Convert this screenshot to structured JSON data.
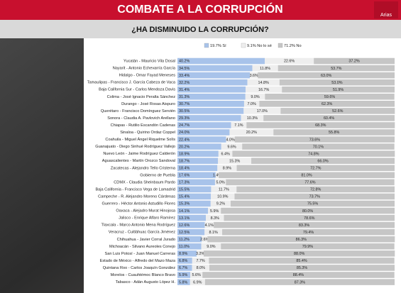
{
  "chart_data": {
    "type": "stacked-bar",
    "orientation": "horizontal",
    "title": "COMBATE A LA CORRUPCIÓN",
    "subtitle": "¿HA DISMINUIDO LA CORRUPCIÓN?",
    "brand": "Arias",
    "xlim": [
      0,
      100
    ],
    "categories": [
      "Yucatán - Mauricio Vila Dosal",
      "Nayarit - Antonio Echevarría García",
      "Hidalgo - Omar Fayad Meneses",
      "Tamaulipas - Francisco J. García Cabeza de Vaca",
      "Baja California Sur - Carlos Mendoza Davis",
      "Colima - José Ignacio Peralta Sánchez",
      "Durango - José Rosas Aispuro",
      "Querétaro - Francisco Domínguez Servién",
      "Sonora - Claudia A. Pavlovich Arellano",
      "Chiapas - Rutilio Escandón Cadenas",
      "Sinaloa - Quirino Ordaz Coppel",
      "Coahuila - Miguel Ángel Riquelme Solís",
      "Guanajuato - Diego Sinhué Rodríguez Vallejo",
      "Nuevo León - Jaime Rodríguez Calderón",
      "Aguascalientes - Martín Orozco Sandoval",
      "Zacatecas - Alejandro Tello Cristerna",
      "Gobierno de Puebla",
      "CDMX - Claudia Sheinbaum Pardo",
      "Baja California - Francisco Vega de Lamadrid",
      "Campeche - R. Alejandro Moreno Cárdenas",
      "Guerrero - Héctor Antonio Astudillo Flores",
      "Oaxaca - Alejadro Murat Hinojosa",
      "Jalisco - Enrique Alfaro Ramírez",
      "Tlaxcala - Marco Antonio Mena Rodríguez",
      "Veracruz - Cuitláhuac García Jiménez",
      "Chihuahua - Javier Corral Jurado",
      "Michoacán - Silvano Aureoles Conejo",
      "San Luis Potosí - Juan Manuel Carreras",
      "Estado de México - Alfredo del Mazo Maza",
      "Quintana Roo - Carlos Joaquín González",
      "Morelos - Cuauhtémoc Blanco Bravo",
      "Tabasco - Adán Augusto López H."
    ],
    "series": [
      {
        "name": "19.7% Sí",
        "color": "#a8c3ea",
        "values": [
          40.2,
          34.5,
          33.4,
          32.2,
          31.4,
          31.3,
          30.7,
          30.5,
          29.3,
          24.7,
          24.0,
          22.4,
          20.2,
          18.9,
          18.7,
          18.4,
          17.6,
          17.3,
          15.5,
          15.4,
          15.3,
          14.1,
          13.1,
          12.6,
          12.5,
          11.2,
          11.0,
          8.9,
          6.8,
          6.7,
          5.9,
          5.8
        ],
        "value_labels": [
          "40.2%",
          "34.5%",
          "33.4%",
          "32.2%",
          "31.4%",
          "31.3%",
          "30.7%",
          "30.5%",
          "29.3%",
          "24.7%",
          "24.0%",
          "22.4%",
          "20.2%",
          "18.9%",
          "18.7%",
          "18.4%",
          "17.6%",
          "17.3%",
          "15.5%",
          "15.4%",
          "15.3%",
          "14.1%",
          "13.1%",
          "12.6%",
          "12.5%",
          "11.2%",
          "11.0%",
          "8.9%",
          "6.8%",
          "6.7%",
          "5.9%",
          "5.8%"
        ]
      },
      {
        "name": "9.1% No lo sé",
        "color": "#eeeeee",
        "values": [
          22.6,
          11.8,
          3.6,
          14.8,
          16.7,
          9.0,
          7.0,
          17.0,
          10.3,
          7.1,
          20.2,
          4.0,
          9.6,
          6.4,
          15.3,
          8.9,
          1.4,
          5.0,
          11.7,
          10.9,
          9.2,
          5.9,
          8.3,
          4.1,
          8.1,
          2.6,
          9.0,
          3.2,
          7.7,
          8.0,
          5.6,
          6.9
        ],
        "value_labels": [
          "22.6%",
          "11.8%",
          "3.6%",
          "14.8%",
          "16.7%",
          "9.0%",
          "7.0%",
          "17.0%",
          "10.3%",
          "7.1%",
          "20.2%",
          "4.0%",
          "9.6%",
          "6.4%",
          "15.3%",
          "8.9%",
          "1.4%",
          "5.0%",
          "11.7%",
          "10.9%",
          "9.2%",
          "5.9%",
          "8.3%",
          "4.1%",
          "8.1%",
          "2.6%",
          "9.0%",
          "3.2%",
          "7.7%",
          "8.0%",
          "5.6%",
          "6.9%"
        ]
      },
      {
        "name": "71.2% No",
        "color": "#c6c6c6",
        "values": [
          37.2,
          53.7,
          63.0,
          53.0,
          51.9,
          59.6,
          62.3,
          52.6,
          60.4,
          68.3,
          55.8,
          73.6,
          70.1,
          74.8,
          66.0,
          72.7,
          81.0,
          77.6,
          72.8,
          73.7,
          75.5,
          80.0,
          78.6,
          83.3,
          79.4,
          86.3,
          79.9,
          88.0,
          85.4,
          85.3,
          88.4,
          87.3
        ],
        "value_labels": [
          "37.2%",
          "53.7%",
          "63.0%",
          "53.0%",
          "51.9%",
          "59.6%",
          "62.3%",
          "52.6%",
          "60.4%",
          "68.3%",
          "55.8%",
          "73.6%",
          "70.1%",
          "74.8%",
          "66.0%",
          "72.7%",
          "81.0%",
          "77.6%",
          "72.8%",
          "73.7%",
          "75.5%",
          "80.0%",
          "78.6%",
          "83.3%",
          "79.4%",
          "86.3%",
          "79.9%",
          "88.0%",
          "85.4%",
          "85.3%",
          "88.4%",
          "87.3%"
        ]
      }
    ]
  }
}
